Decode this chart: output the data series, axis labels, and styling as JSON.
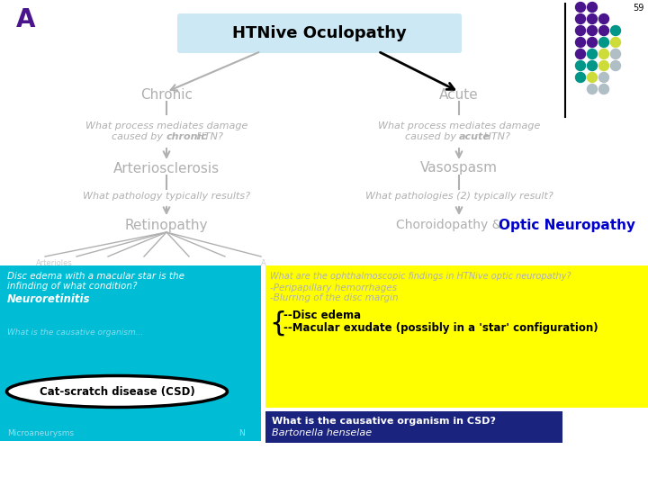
{
  "bg_color": "#ffffff",
  "title_box_color": "#cce8f4",
  "title_text": "HTNive Oculopathy",
  "slide_num": "59",
  "letter_A": "A",
  "letter_A_color": "#4a148c",
  "chronic_label": "Chronic",
  "acute_label": "Acute",
  "answer1_chronic": "Arteriosclerosis",
  "q2_chronic": "What pathology typically results?",
  "answer2_chronic": "Retinopathy",
  "answer1_acute": "Vasospasm",
  "q2_acute": "What pathologies (2) typically result?",
  "answer2_acute_bold_color": "#0000cc",
  "gray_text_color": "#b0b0b0",
  "arrow_color_gray": "#b0b0b0",
  "arrow_color_black": "#000000",
  "cyan_box_color": "#00bcd4",
  "yellow_box_color": "#ffff00",
  "navy_box_color": "#1a237e",
  "yellow_box_title": "What are the ophthalmoscopic findings in HTNive optic neuropathy?",
  "yellow_box_items": [
    "-Peripapillary hemorrhages",
    "-Blurring of the disc margin"
  ],
  "yellow_box_bold1": "--Disc edema",
  "yellow_box_bold2": "--Macular exudate (possibly in a 'star' configuration)",
  "csd_label": "Cat-scratch disease (CSD)",
  "navy_box_q": "What is the causative organism in CSD?",
  "navy_box_a": "Bartonella henselae",
  "dot_grid": [
    [
      "#4a148c",
      "#4a148c",
      null,
      null,
      null
    ],
    [
      "#4a148c",
      "#4a148c",
      "#4a148c",
      null,
      null
    ],
    [
      "#4a148c",
      "#4a148c",
      "#4a148c",
      "#009688",
      null
    ],
    [
      "#4a148c",
      "#4a148c",
      "#009688",
      "#cddc39",
      null
    ],
    [
      "#4a148c",
      "#009688",
      "#cddc39",
      "#b0bec5",
      null
    ],
    [
      "#009688",
      "#009688",
      "#cddc39",
      "#b0bec5",
      null
    ],
    [
      "#009688",
      "#cddc39",
      "#b0bec5",
      null,
      null
    ],
    [
      null,
      "#b0bec5",
      "#b0bec5",
      null,
      null
    ]
  ]
}
